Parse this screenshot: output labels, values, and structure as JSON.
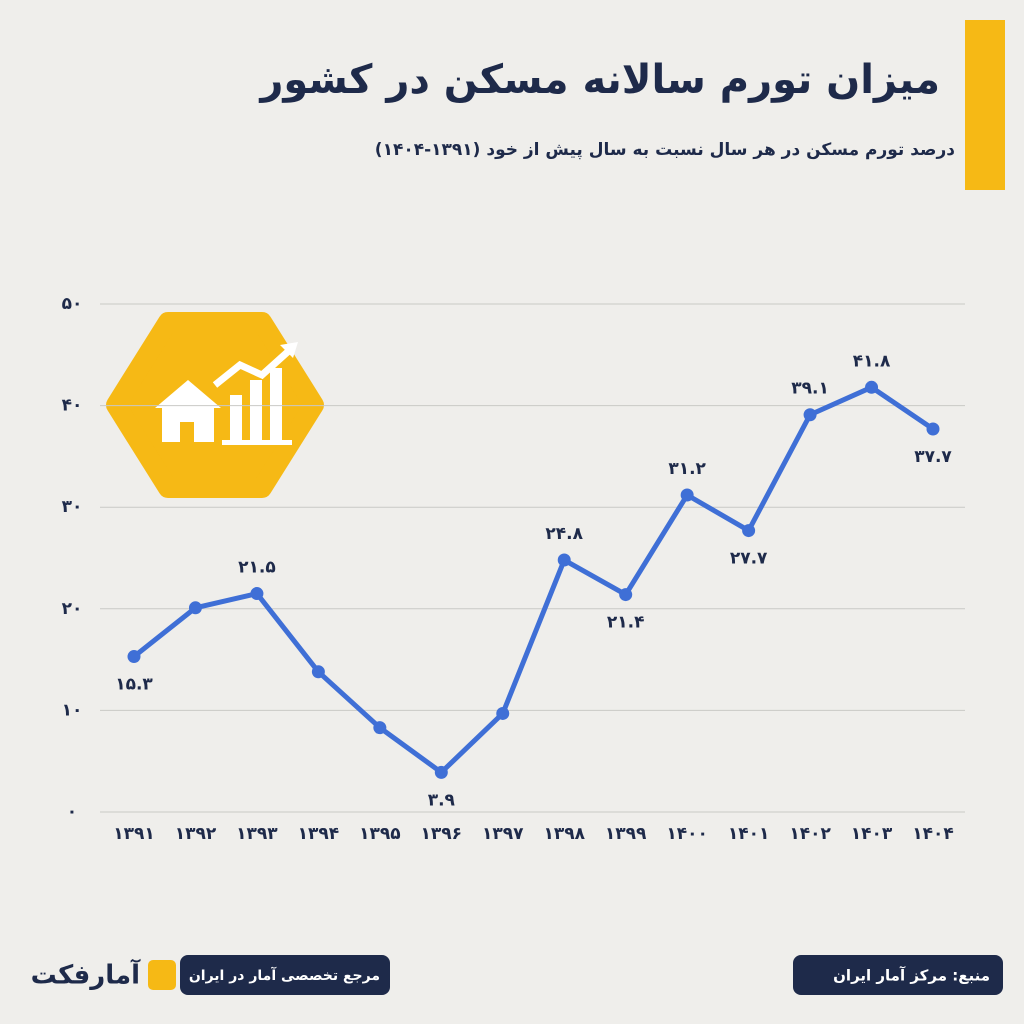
{
  "chart_data": {
    "type": "line",
    "title": "میزان تورم سالانه مسکن در کشور",
    "subtitle": "درصد تورم مسکن در هر سال نسبت به سال پیش از خود (۱۳۹۱-۱۴۰۴)",
    "categories": [
      "۱۳۹۱",
      "۱۳۹۲",
      "۱۳۹۳",
      "۱۳۹۴",
      "۱۳۹۵",
      "۱۳۹۶",
      "۱۳۹۷",
      "۱۳۹۸",
      "۱۳۹۹",
      "۱۴۰۰",
      "۱۴۰۱",
      "۱۴۰۲",
      "۱۴۰۳",
      "۱۴۰۴"
    ],
    "values": [
      15.3,
      20.1,
      21.5,
      13.8,
      8.3,
      3.9,
      9.7,
      24.8,
      21.4,
      31.2,
      27.7,
      39.1,
      41.8,
      37.7
    ],
    "value_labels": [
      "۱۵.۳",
      null,
      "۲۱.۵",
      null,
      null,
      "۳.۹",
      null,
      "۲۴.۸",
      "۲۱.۴",
      "۳۱.۲",
      "۲۷.۷",
      "۳۹.۱",
      "۴۱.۸",
      "۳۷.۷"
    ],
    "color": "#3f6fd6",
    "ylim": [
      0,
      50
    ],
    "yticks": [
      {
        "value": 0,
        "label": "۰"
      },
      {
        "value": 10,
        "label": "۱۰"
      },
      {
        "value": 20,
        "label": "۲۰"
      },
      {
        "value": 30,
        "label": "۳۰"
      },
      {
        "value": 40,
        "label": "۴۰"
      },
      {
        "value": 50,
        "label": "۵۰"
      }
    ],
    "grid": true
  },
  "footer": {
    "source": "منبع: مرکز آمار ایران",
    "tagline": "مرجع تخصصی آمار در ایران",
    "logo": "آمارفکت"
  }
}
